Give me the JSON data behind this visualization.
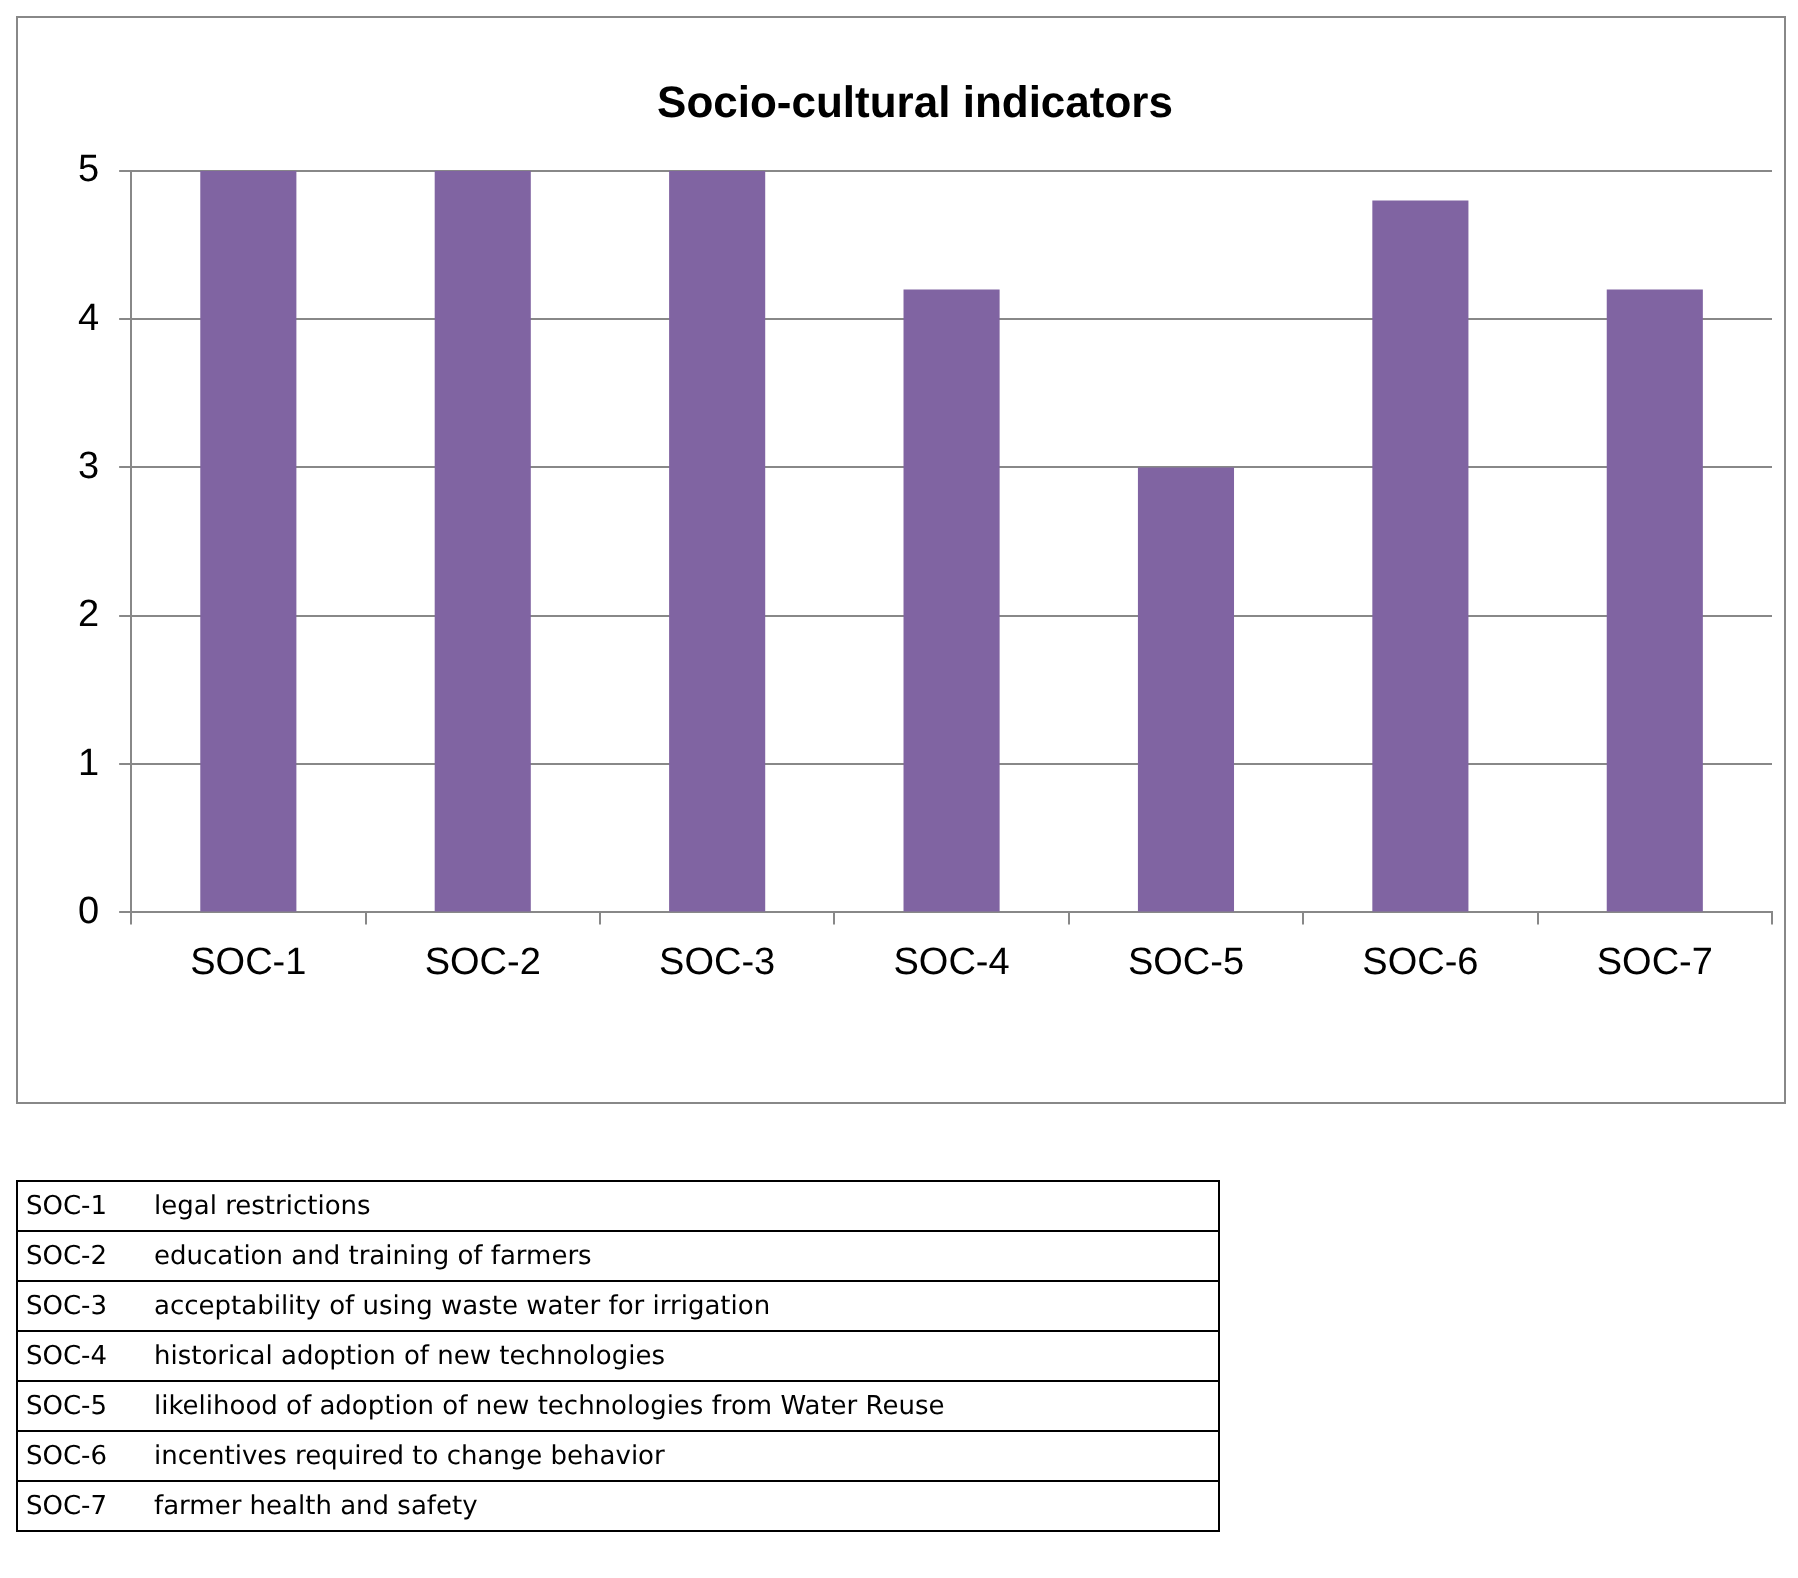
{
  "chart_data": {
    "type": "bar",
    "title": "Socio-cultural indicators",
    "categories": [
      "SOC-1",
      "SOC-2",
      "SOC-3",
      "SOC-4",
      "SOC-5",
      "SOC-6",
      "SOC-7"
    ],
    "values": [
      5,
      5,
      5,
      4.2,
      3,
      4.8,
      4.2
    ],
    "color": "#8064a2",
    "ylim": [
      0,
      5
    ],
    "yticks": [
      0,
      1,
      2,
      3,
      4,
      5
    ],
    "grid": "y",
    "legend": false,
    "annotations": [
      "SOC-1\tlegal restrictions",
      "SOC-2\teducation and training of farmers",
      "SOC-3\tacceptability of using waste water for irrigation",
      "SOC-4\thistorical adoption of new technologies",
      "SOC-5\tlikelihood of adoption of new technologies from Water Reuse",
      "SOC-6\tincentives required to change behavior",
      "SOC-7\tfarmer health and safety"
    ]
  }
}
